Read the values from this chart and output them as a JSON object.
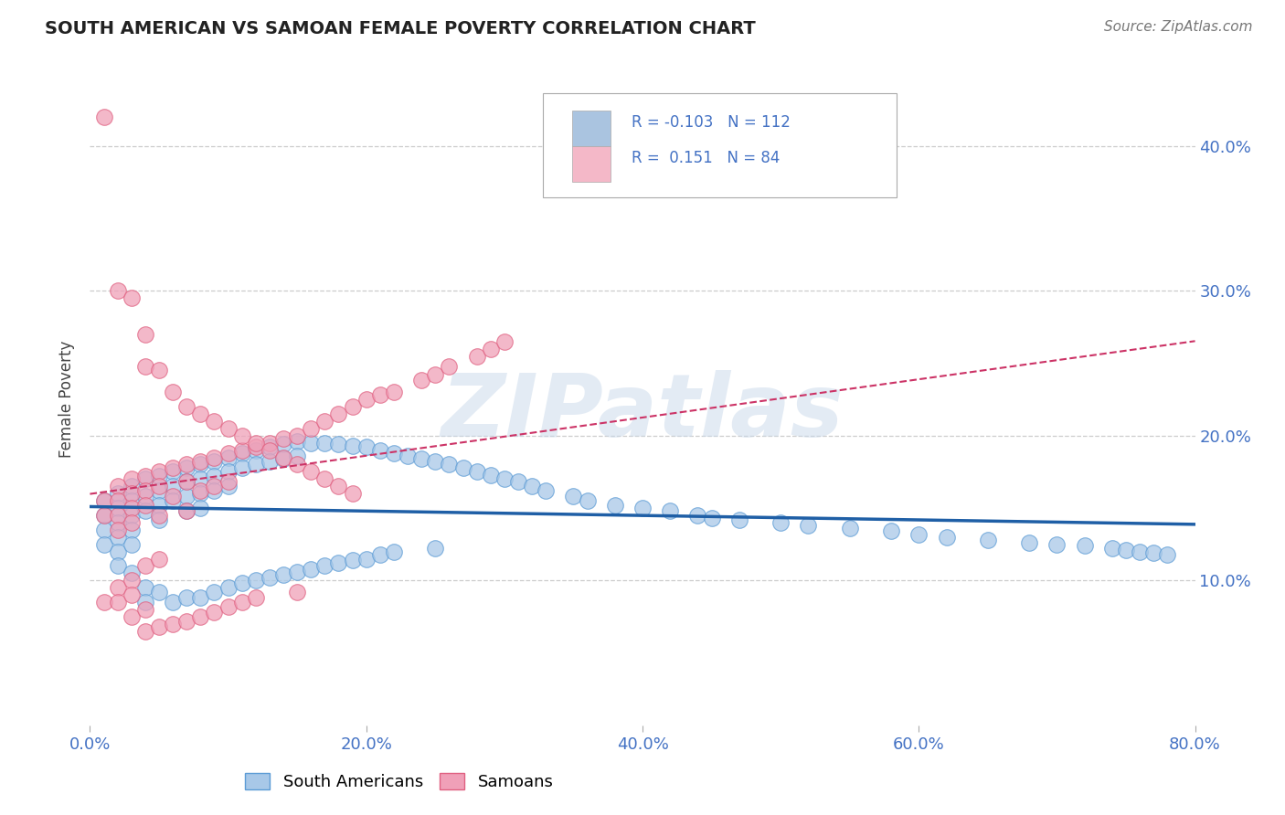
{
  "title": "SOUTH AMERICAN VS SAMOAN FEMALE POVERTY CORRELATION CHART",
  "source": "Source: ZipAtlas.com",
  "xlabel_ticks": [
    "0.0%",
    "20.0%",
    "40.0%",
    "60.0%",
    "80.0%"
  ],
  "ylabel_ticks": [
    "10.0%",
    "20.0%",
    "30.0%",
    "40.0%"
  ],
  "ylabel_label": "Female Poverty",
  "watermark": "ZIPatlas",
  "blue_scatter_fill": "#a8c8e8",
  "blue_scatter_edge": "#5b9bd5",
  "pink_scatter_fill": "#f0a0b8",
  "pink_scatter_edge": "#e06080",
  "blue_line_color": "#1f5fa6",
  "pink_line_color": "#cc3366",
  "grid_color": "#cccccc",
  "background_color": "#ffffff",
  "title_color": "#222222",
  "axis_label_color": "#4472c4",
  "legend_blue_fill": "#aac4e0",
  "legend_pink_fill": "#f4b8c8",
  "blue_R": -0.103,
  "blue_N": 112,
  "pink_R": 0.151,
  "pink_N": 84,
  "xlim": [
    0.0,
    0.8
  ],
  "ylim": [
    0.0,
    0.45
  ],
  "figsize": [
    14.06,
    8.92
  ],
  "dpi": 100,
  "blue_points_x": [
    0.01,
    0.01,
    0.01,
    0.01,
    0.02,
    0.02,
    0.02,
    0.02,
    0.02,
    0.02,
    0.03,
    0.03,
    0.03,
    0.03,
    0.03,
    0.03,
    0.04,
    0.04,
    0.04,
    0.04,
    0.04,
    0.05,
    0.05,
    0.05,
    0.05,
    0.05,
    0.06,
    0.06,
    0.06,
    0.06,
    0.07,
    0.07,
    0.07,
    0.07,
    0.07,
    0.08,
    0.08,
    0.08,
    0.08,
    0.08,
    0.09,
    0.09,
    0.09,
    0.09,
    0.1,
    0.1,
    0.1,
    0.1,
    0.11,
    0.11,
    0.11,
    0.12,
    0.12,
    0.12,
    0.13,
    0.13,
    0.13,
    0.14,
    0.14,
    0.14,
    0.15,
    0.15,
    0.15,
    0.16,
    0.16,
    0.17,
    0.17,
    0.18,
    0.18,
    0.19,
    0.19,
    0.2,
    0.2,
    0.21,
    0.21,
    0.22,
    0.22,
    0.23,
    0.24,
    0.25,
    0.25,
    0.26,
    0.27,
    0.28,
    0.29,
    0.3,
    0.31,
    0.32,
    0.33,
    0.35,
    0.36,
    0.38,
    0.4,
    0.42,
    0.44,
    0.45,
    0.47,
    0.5,
    0.52,
    0.55,
    0.58,
    0.6,
    0.62,
    0.65,
    0.68,
    0.7,
    0.72,
    0.74,
    0.75,
    0.76,
    0.77,
    0.78
  ],
  "blue_points_y": [
    0.155,
    0.145,
    0.135,
    0.125,
    0.16,
    0.15,
    0.14,
    0.13,
    0.12,
    0.11,
    0.165,
    0.155,
    0.145,
    0.135,
    0.125,
    0.105,
    0.17,
    0.158,
    0.148,
    0.095,
    0.085,
    0.172,
    0.162,
    0.152,
    0.142,
    0.092,
    0.175,
    0.165,
    0.155,
    0.085,
    0.178,
    0.168,
    0.158,
    0.148,
    0.088,
    0.18,
    0.17,
    0.16,
    0.15,
    0.088,
    0.182,
    0.172,
    0.162,
    0.092,
    0.185,
    0.175,
    0.165,
    0.095,
    0.188,
    0.178,
    0.098,
    0.19,
    0.18,
    0.1,
    0.192,
    0.182,
    0.102,
    0.194,
    0.184,
    0.104,
    0.196,
    0.186,
    0.106,
    0.195,
    0.108,
    0.195,
    0.11,
    0.194,
    0.112,
    0.193,
    0.114,
    0.192,
    0.115,
    0.19,
    0.118,
    0.188,
    0.12,
    0.186,
    0.184,
    0.182,
    0.122,
    0.18,
    0.178,
    0.175,
    0.173,
    0.17,
    0.168,
    0.165,
    0.162,
    0.158,
    0.155,
    0.152,
    0.15,
    0.148,
    0.145,
    0.143,
    0.142,
    0.14,
    0.138,
    0.136,
    0.134,
    0.132,
    0.13,
    0.128,
    0.126,
    0.125,
    0.124,
    0.122,
    0.121,
    0.12,
    0.119,
    0.118
  ],
  "pink_points_x": [
    0.01,
    0.01,
    0.01,
    0.02,
    0.02,
    0.02,
    0.02,
    0.02,
    0.02,
    0.03,
    0.03,
    0.03,
    0.03,
    0.03,
    0.03,
    0.03,
    0.04,
    0.04,
    0.04,
    0.04,
    0.04,
    0.04,
    0.05,
    0.05,
    0.05,
    0.05,
    0.05,
    0.06,
    0.06,
    0.06,
    0.07,
    0.07,
    0.07,
    0.07,
    0.08,
    0.08,
    0.08,
    0.09,
    0.09,
    0.09,
    0.1,
    0.1,
    0.1,
    0.11,
    0.11,
    0.12,
    0.12,
    0.13,
    0.14,
    0.15,
    0.15,
    0.16,
    0.17,
    0.18,
    0.19,
    0.2,
    0.21,
    0.22,
    0.24,
    0.25,
    0.26,
    0.28,
    0.29,
    0.3,
    0.01,
    0.02,
    0.03,
    0.04,
    0.04,
    0.05,
    0.06,
    0.07,
    0.08,
    0.09,
    0.1,
    0.11,
    0.12,
    0.13,
    0.14,
    0.15,
    0.16,
    0.17,
    0.18,
    0.19
  ],
  "pink_points_y": [
    0.155,
    0.145,
    0.085,
    0.165,
    0.155,
    0.145,
    0.135,
    0.095,
    0.085,
    0.17,
    0.16,
    0.15,
    0.14,
    0.1,
    0.09,
    0.075,
    0.172,
    0.162,
    0.152,
    0.11,
    0.08,
    0.065,
    0.175,
    0.165,
    0.145,
    0.115,
    0.068,
    0.178,
    0.158,
    0.07,
    0.18,
    0.168,
    0.148,
    0.072,
    0.182,
    0.162,
    0.075,
    0.185,
    0.165,
    0.078,
    0.188,
    0.168,
    0.082,
    0.19,
    0.085,
    0.192,
    0.088,
    0.195,
    0.198,
    0.2,
    0.092,
    0.205,
    0.21,
    0.215,
    0.22,
    0.225,
    0.228,
    0.23,
    0.238,
    0.242,
    0.248,
    0.255,
    0.26,
    0.265,
    0.42,
    0.3,
    0.295,
    0.27,
    0.248,
    0.245,
    0.23,
    0.22,
    0.215,
    0.21,
    0.205,
    0.2,
    0.195,
    0.19,
    0.185,
    0.18,
    0.175,
    0.17,
    0.165,
    0.16
  ]
}
